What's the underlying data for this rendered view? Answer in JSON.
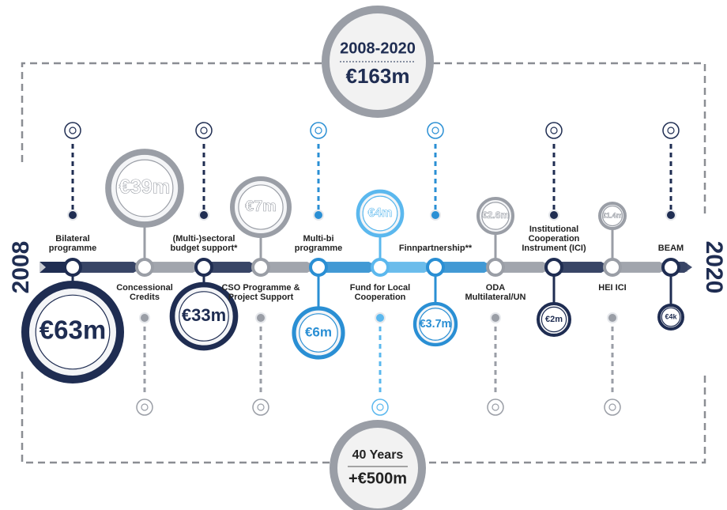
{
  "top_badge": {
    "period": "2008-2020",
    "amount": "€163m"
  },
  "bottom_badge": {
    "period": "40 Years",
    "amount": "+€500m"
  },
  "start_year": "2008",
  "end_year": "2020",
  "programmes": [
    {
      "label": [
        "Bilateral",
        "programme"
      ],
      "amount": "€63m"
    },
    {
      "label": [
        "Concessional",
        "Credits"
      ],
      "amount": "€39m"
    },
    {
      "label": [
        "(Multi-)sectoral",
        "budget support*"
      ],
      "amount": "€33m"
    },
    {
      "label": [
        "CSO Programme &",
        "Project Support"
      ],
      "amount": "€7m"
    },
    {
      "label": [
        "Multi-bi",
        "programme"
      ],
      "amount": "€6m"
    },
    {
      "label": [
        "Fund for Local",
        "Cooperation"
      ],
      "amount": "€4m"
    },
    {
      "label": [
        "Finnpartnership**"
      ],
      "amount": "€3.7m"
    },
    {
      "label": [
        "ODA",
        "Multilateral/UN"
      ],
      "amount": "€2.6m"
    },
    {
      "label": [
        "Institutional",
        "Cooperation",
        "Instrument (ICI)"
      ],
      "amount": "€2m"
    },
    {
      "label": [
        "HEI ICI"
      ],
      "amount": "€1.4m"
    },
    {
      "label": [
        "BEAM"
      ],
      "amount": "€4k"
    }
  ]
}
